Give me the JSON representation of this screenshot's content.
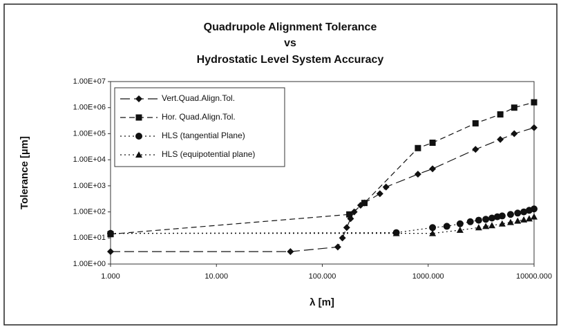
{
  "chart_data": {
    "type": "line",
    "title": [
      "Quadrupole Alignment Tolerance",
      "vs",
      "Hydrostatic Level System Accuracy"
    ],
    "x_label": "λ [m]",
    "y_label": "Tolerance [µm]",
    "x_log": true,
    "y_log": true,
    "xlim": [
      1,
      10000
    ],
    "ylim": [
      1,
      10000000
    ],
    "xticks": [
      {
        "value": 1,
        "label": "1.000"
      },
      {
        "value": 10,
        "label": "10.000"
      },
      {
        "value": 100,
        "label": "100.000"
      },
      {
        "value": 1000,
        "label": "1000.000"
      },
      {
        "value": 10000,
        "label": "10000.000"
      }
    ],
    "yticks": [
      {
        "value": 1,
        "label": "1.00E+00"
      },
      {
        "value": 10,
        "label": "1.00E+01"
      },
      {
        "value": 100,
        "label": "1.00E+02"
      },
      {
        "value": 1000,
        "label": "1.00E+03"
      },
      {
        "value": 10000,
        "label": "1.00E+04"
      },
      {
        "value": 100000,
        "label": "1.00E+05"
      },
      {
        "value": 1000000,
        "label": "1.00E+06"
      },
      {
        "value": 10000000,
        "label": "1.00E+07"
      }
    ],
    "legend": "top-left",
    "series": [
      {
        "name": "Vert.Quad.Align.Tol.",
        "color": "#111111",
        "marker": "diamond",
        "dash": "14,6",
        "x": [
          1,
          50,
          140,
          155,
          170,
          185,
          200,
          230,
          250,
          350,
          400,
          800,
          1100,
          2800,
          4800,
          6500,
          10000
        ],
        "values": [
          3,
          3,
          4.5,
          10,
          25,
          55,
          100,
          180,
          220,
          500,
          900,
          2800,
          4500,
          25000,
          60000,
          100000,
          170000
        ]
      },
      {
        "name": "Hor. Quad.Align.Tol.",
        "color": "#111111",
        "marker": "square",
        "dash": "8,5",
        "x": [
          1,
          180,
          250,
          800,
          1100,
          2800,
          4800,
          6500,
          10000
        ],
        "values": [
          14,
          80,
          220,
          28000,
          45000,
          250000,
          550000,
          1000000,
          1600000
        ]
      },
      {
        "name": "HLS (tangential Plane)",
        "color": "#111111",
        "marker": "circle",
        "dash": "2,4",
        "x": [
          1,
          500,
          1100,
          1500,
          2000,
          2500,
          3000,
          3500,
          4000,
          4500,
          5000,
          6000,
          7000,
          8000,
          9000,
          10000
        ],
        "values": [
          15,
          16,
          25,
          28,
          35,
          42,
          48,
          52,
          58,
          65,
          70,
          80,
          90,
          100,
          115,
          130
        ]
      },
      {
        "name": "HLS (equipotential plane)",
        "color": "#111111",
        "marker": "triangle",
        "dash": "2,4",
        "x": [
          1,
          500,
          1100,
          2000,
          3000,
          3500,
          4000,
          5000,
          6000,
          7000,
          8000,
          9000,
          10000
        ],
        "values": [
          15,
          15,
          15,
          20,
          25,
          28,
          30,
          35,
          40,
          45,
          50,
          55,
          65
        ]
      }
    ]
  }
}
